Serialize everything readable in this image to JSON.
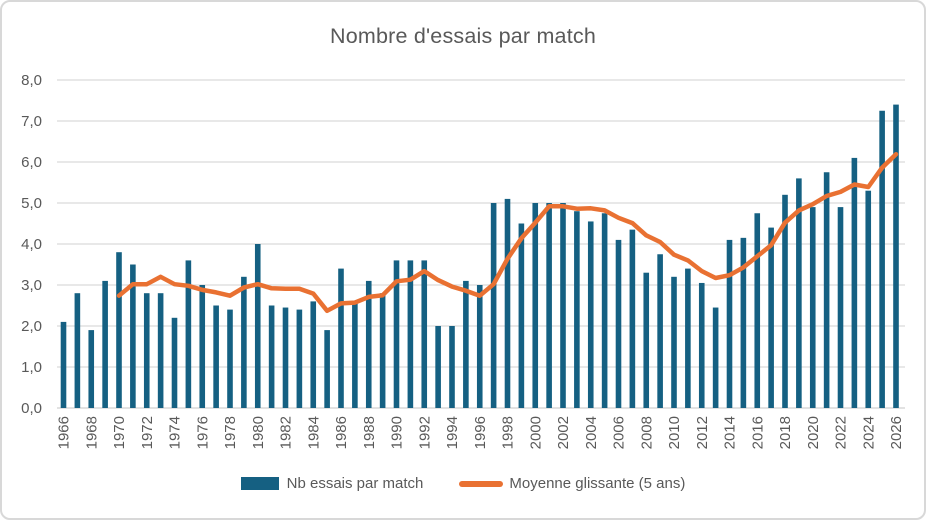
{
  "chart": {
    "title": "Nombre d'essais par match"
  },
  "chart_data": {
    "type": "bar",
    "title": "Nombre d'essais par match",
    "years": [
      1966,
      1967,
      1968,
      1969,
      1970,
      1971,
      1972,
      1973,
      1974,
      1975,
      1976,
      1977,
      1978,
      1979,
      1980,
      1981,
      1982,
      1983,
      1984,
      1985,
      1986,
      1987,
      1988,
      1989,
      1990,
      1991,
      1992,
      1993,
      1994,
      1995,
      1996,
      1997,
      1998,
      1999,
      2000,
      2001,
      2002,
      2003,
      2004,
      2005,
      2006,
      2007,
      2008,
      2009,
      2010,
      2011,
      2012,
      2013,
      2014,
      2015,
      2016,
      2017,
      2018,
      2019,
      2020,
      2021,
      2022,
      2023,
      2024,
      2025,
      2026
    ],
    "series": [
      {
        "name": "Nb essais par match",
        "type": "bar",
        "color": "#156082",
        "values": [
          2.1,
          2.8,
          1.9,
          3.1,
          3.8,
          3.5,
          2.8,
          2.8,
          2.2,
          3.6,
          3.0,
          2.5,
          2.4,
          3.2,
          4.0,
          2.5,
          2.45,
          2.4,
          2.6,
          1.9,
          3.4,
          2.55,
          3.1,
          2.8,
          3.6,
          3.6,
          3.6,
          2.0,
          2.0,
          3.1,
          3.0,
          5.0,
          5.1,
          4.5,
          5.0,
          5.0,
          5.0,
          4.8,
          4.55,
          4.75,
          4.1,
          4.35,
          3.3,
          3.75,
          3.2,
          3.4,
          3.05,
          2.45,
          4.1,
          4.15,
          4.75,
          4.4,
          5.2,
          5.6,
          4.9,
          5.75,
          4.9,
          6.1,
          5.3,
          7.25,
          7.4
        ]
      },
      {
        "name": "Moyenne glissante (5 ans)",
        "type": "line",
        "color": "#E97132",
        "first_year": 1970,
        "values": [
          2.74,
          3.02,
          3.02,
          3.2,
          3.02,
          2.98,
          2.88,
          2.82,
          2.74,
          2.94,
          3.02,
          2.92,
          2.91,
          2.91,
          2.79,
          2.37,
          2.55,
          2.57,
          2.71,
          2.75,
          3.09,
          3.13,
          3.34,
          3.12,
          2.96,
          2.86,
          2.74,
          3.02,
          3.64,
          4.14,
          4.52,
          4.92,
          4.92,
          4.86,
          4.87,
          4.82,
          4.64,
          4.51,
          4.21,
          4.05,
          3.74,
          3.6,
          3.34,
          3.17,
          3.24,
          3.43,
          3.7,
          3.97,
          4.52,
          4.82,
          4.97,
          5.17,
          5.27,
          5.45,
          5.39,
          5.86,
          6.19
        ]
      }
    ],
    "xlabel": "",
    "ylabel": "",
    "ylim": [
      0,
      8
    ],
    "ytick_step": 1,
    "ytick_labels": [
      "0,0",
      "1,0",
      "2,0",
      "3,0",
      "4,0",
      "5,0",
      "6,0",
      "7,0",
      "8,0"
    ],
    "xtick_labels": [
      "1966",
      "1968",
      "1970",
      "1972",
      "1974",
      "1976",
      "1978",
      "1980",
      "1982",
      "1984",
      "1986",
      "1988",
      "1990",
      "1992",
      "1994",
      "1996",
      "1998",
      "2000",
      "2002",
      "2004",
      "2006",
      "2008",
      "2010",
      "2012",
      "2014",
      "2016",
      "2018",
      "2020",
      "2022",
      "2024",
      "2026"
    ],
    "grid": true,
    "legend_position": "bottom",
    "text_color": "#595959",
    "gridline_color": "#D9D9D9"
  }
}
